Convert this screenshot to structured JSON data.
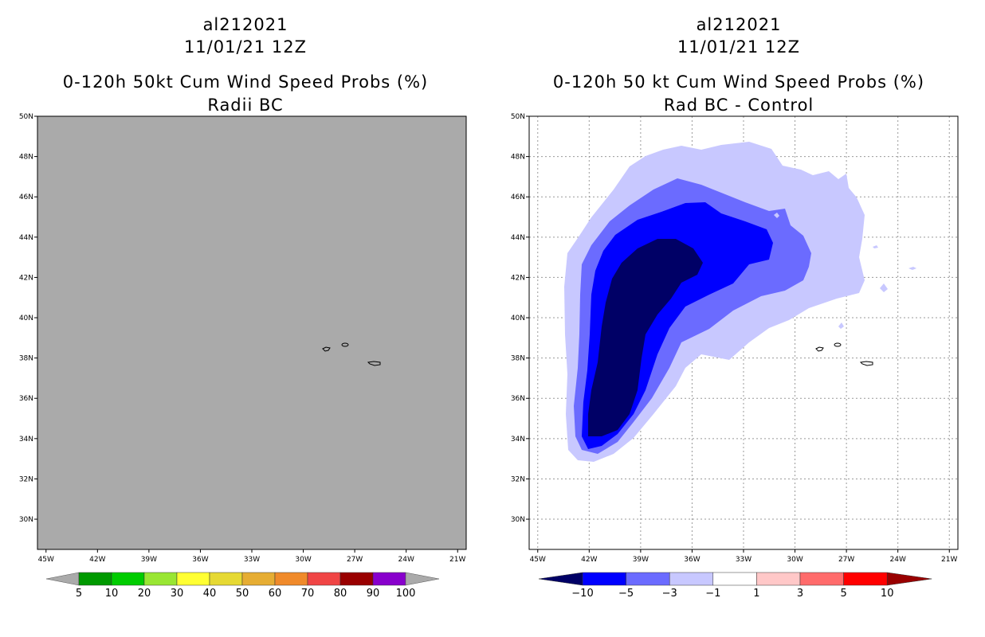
{
  "chart_data": [
    {
      "type": "heatmap",
      "storm_id": "al212021",
      "date": "11/01/21 12Z",
      "title": "0-120h 50kt Cum Wind Speed Probs (%)",
      "subtitle": "Radii BC",
      "xlabel": "",
      "ylabel": "",
      "x_ticks": [
        "45W",
        "42W",
        "39W",
        "36W",
        "33W",
        "30W",
        "27W",
        "24W",
        "21W"
      ],
      "y_ticks": [
        "50N",
        "48N",
        "46N",
        "44N",
        "42N",
        "40N",
        "38N",
        "36N",
        "34N",
        "32N",
        "30N"
      ],
      "xlim": [
        -45.5,
        -20.5
      ],
      "ylim": [
        28.5,
        50
      ],
      "grid": false,
      "field": "uniform gray - no probability shading",
      "colorbar": {
        "labels": [
          "5",
          "10",
          "20",
          "30",
          "40",
          "50",
          "60",
          "70",
          "80",
          "90",
          "100"
        ],
        "colors": [
          "#009900",
          "#00cc00",
          "#99e633",
          "#ffff33",
          "#e6d933",
          "#e6ad33",
          "#f08a2a",
          "#f04545",
          "#990000",
          "#8800cc"
        ]
      }
    },
    {
      "type": "heatmap",
      "storm_id": "al212021",
      "date": "11/01/21 12Z",
      "title": "0-120h 50 kt Cum Wind Speed Probs (%)",
      "subtitle": "Rad BC - Control",
      "xlabel": "",
      "ylabel": "",
      "x_ticks": [
        "45W",
        "42W",
        "39W",
        "36W",
        "33W",
        "30W",
        "27W",
        "24W",
        "21W"
      ],
      "y_ticks": [
        "50N",
        "48N",
        "46N",
        "44N",
        "42N",
        "40N",
        "38N",
        "36N",
        "34N",
        "32N",
        "30N"
      ],
      "xlim": [
        -45.5,
        -20.5
      ],
      "ylim": [
        28.5,
        50
      ],
      "grid": true,
      "field": "negative difference plume, minimum below -10 near 41W 35N to 37W 43N",
      "colorbar": {
        "labels": [
          "-10",
          "-5",
          "-3",
          "-1",
          "1",
          "3",
          "5",
          "10"
        ],
        "colors": [
          "#000066",
          "#0000ff",
          "#6b6bff",
          "#c8c8ff",
          "#ffffff",
          "#ffc8c8",
          "#ff6b6b",
          "#ff0000",
          "#990000"
        ]
      }
    }
  ]
}
